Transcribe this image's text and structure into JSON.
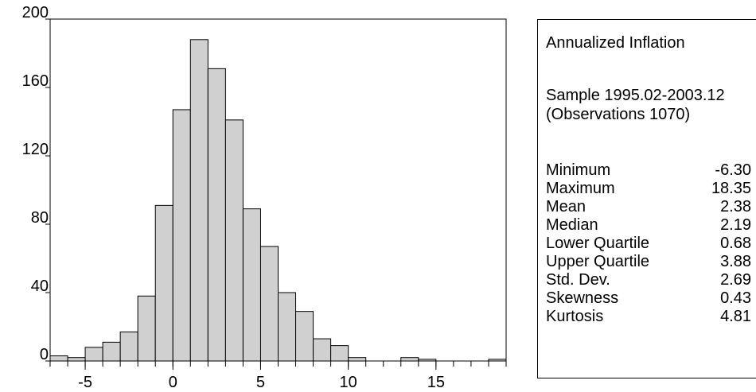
{
  "chart_data": {
    "type": "bar",
    "x": [
      -6.5,
      -5.5,
      -4.5,
      -3.5,
      -2.5,
      -1.5,
      -0.5,
      0.5,
      1.5,
      2.5,
      3.5,
      4.5,
      5.5,
      6.5,
      7.5,
      8.5,
      9.5,
      10.5,
      11.5,
      12.5,
      13.5,
      14.5,
      15.5,
      16.5,
      17.5,
      18.5
    ],
    "values": [
      3,
      2,
      8,
      11,
      17,
      38,
      91,
      147,
      188,
      171,
      141,
      89,
      67,
      40,
      29,
      13,
      9,
      2,
      0,
      0,
      2,
      1,
      0,
      0,
      0,
      1
    ],
    "bin_width": 1,
    "xlim": [
      -7,
      19
    ],
    "ylim": [
      0,
      200
    ],
    "xticks": [
      -5,
      0,
      5,
      10,
      15
    ],
    "yticks": [
      0,
      40,
      80,
      120,
      160,
      200
    ],
    "bar_color": "#d0d0d0",
    "edge_color": "#000000",
    "legend": "none",
    "grid": false
  },
  "stats": {
    "title": "Annualized Inflation",
    "sample_line1": "Sample 1995.02-2003.12",
    "sample_line2": "(Observations 1070)",
    "rows": [
      {
        "label": "Minimum",
        "value": "-6.30"
      },
      {
        "label": "Maximum",
        "value": "18.35"
      },
      {
        "label": "Mean",
        "value": "2.38"
      },
      {
        "label": "Median",
        "value": "2.19"
      },
      {
        "label": "Lower Quartile",
        "value": "0.68"
      },
      {
        "label": "Upper Quartile",
        "value": "3.88"
      },
      {
        "label": "Std. Dev.",
        "value": "2.69"
      },
      {
        "label": "Skewness",
        "value": "0.43"
      },
      {
        "label": "Kurtosis",
        "value": "4.81"
      }
    ]
  }
}
